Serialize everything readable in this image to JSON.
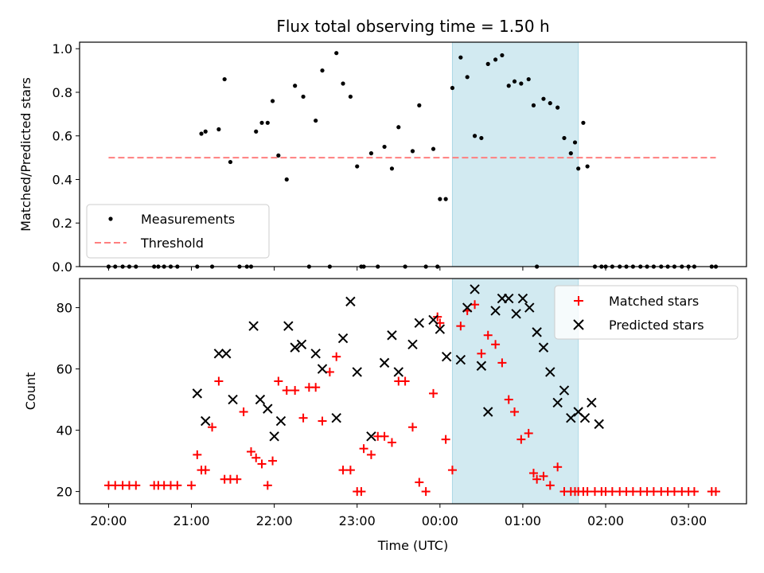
{
  "chart_data": [
    {
      "type": "scatter",
      "title": "Flux total observing time = 1.50 h",
      "xlabel": "",
      "ylabel": "Matched/Predicted stars",
      "ylim": [
        0,
        1.03
      ],
      "yticks": [
        "0.0",
        "0.2",
        "0.4",
        "0.6",
        "0.8",
        "1.0"
      ],
      "xticks": [
        "20:00",
        "21:00",
        "22:00",
        "23:00",
        "00:00",
        "01:00",
        "02:00",
        "03:00"
      ],
      "legend": {
        "placement": "lower-left",
        "entries": [
          "Measurements",
          "Threshold"
        ]
      },
      "threshold": {
        "name": "Threshold",
        "value": 0.5,
        "x_range": [
          0,
          7.33
        ],
        "color": "#ff7f7f",
        "style": "dashed"
      },
      "shaded_span": {
        "x_start": 4.15,
        "x_end": 5.67,
        "color": "#add8e6"
      },
      "series": [
        {
          "name": "Measurements",
          "color": "#000000",
          "marker": "dot",
          "x": [
            0.0,
            0.08,
            0.17,
            0.25,
            0.33,
            0.55,
            0.6,
            0.67,
            0.75,
            0.83,
            1.07,
            1.12,
            1.17,
            1.25,
            1.33,
            1.4,
            1.47,
            1.58,
            1.67,
            1.72,
            1.78,
            1.85,
            1.92,
            1.98,
            2.05,
            2.15,
            2.25,
            2.35,
            2.42,
            2.5,
            2.58,
            2.67,
            2.75,
            2.83,
            2.92,
            3.0,
            3.05,
            3.08,
            3.17,
            3.25,
            3.33,
            3.42,
            3.5,
            3.58,
            3.67,
            3.75,
            3.83,
            3.92,
            3.97,
            4.0,
            4.07,
            4.15,
            4.25,
            4.33,
            4.42,
            4.5,
            4.58,
            4.67,
            4.75,
            4.83,
            4.9,
            4.98,
            5.07,
            5.13,
            5.17,
            5.25,
            5.33,
            5.42,
            5.5,
            5.58,
            5.63,
            5.67,
            5.73,
            5.78,
            5.87,
            5.95,
            6.0,
            6.08,
            6.17,
            6.25,
            6.33,
            6.42,
            6.5,
            6.58,
            6.67,
            6.75,
            6.83,
            6.92,
            7.0,
            7.07,
            7.28,
            7.33
          ],
          "y": [
            0,
            0,
            0,
            0,
            0,
            0,
            0,
            0,
            0,
            0,
            0,
            0.61,
            0.62,
            0,
            0.63,
            0.86,
            0.48,
            0,
            0,
            0,
            0.62,
            0.66,
            0.66,
            0.76,
            0.51,
            0.4,
            0.83,
            0.78,
            0,
            0.67,
            0.9,
            0,
            0.98,
            0.84,
            0.78,
            0.46,
            0,
            0,
            0.52,
            0,
            0.55,
            0.45,
            0.64,
            0,
            0.53,
            0.74,
            0,
            0.54,
            0,
            0.31,
            0.31,
            0.82,
            0.96,
            0.87,
            0.6,
            0.59,
            0.93,
            0.95,
            0.97,
            0.83,
            0.85,
            0.84,
            0.86,
            0.74,
            0,
            0.77,
            0.75,
            0.73,
            0.59,
            0.52,
            0.57,
            0.45,
            0.66,
            0.46,
            0,
            0,
            0,
            0,
            0,
            0,
            0,
            0,
            0,
            0,
            0,
            0,
            0,
            0,
            0,
            0,
            0,
            0
          ]
        }
      ]
    },
    {
      "type": "scatter",
      "title": "",
      "xlabel": "Time (UTC)",
      "ylabel": "Count",
      "ylim": [
        16,
        89.5
      ],
      "yticks": [
        "20",
        "40",
        "60",
        "80"
      ],
      "xticks": [
        "20:00",
        "21:00",
        "22:00",
        "23:00",
        "00:00",
        "01:00",
        "02:00",
        "03:00"
      ],
      "legend": {
        "placement": "top-right",
        "entries": [
          "Matched stars",
          "Predicted stars"
        ]
      },
      "shaded_span": {
        "x_start": 4.15,
        "x_end": 5.67,
        "color": "#add8e6"
      },
      "series": [
        {
          "name": "Matched stars",
          "color": "#ff0000",
          "marker": "plus",
          "x": [
            0.0,
            0.08,
            0.17,
            0.25,
            0.33,
            0.55,
            0.6,
            0.67,
            0.75,
            0.83,
            1.0,
            1.07,
            1.12,
            1.17,
            1.25,
            1.33,
            1.4,
            1.47,
            1.55,
            1.63,
            1.72,
            1.78,
            1.85,
            1.92,
            1.98,
            2.05,
            2.15,
            2.25,
            2.35,
            2.42,
            2.5,
            2.58,
            2.67,
            2.75,
            2.83,
            2.92,
            3.0,
            3.05,
            3.08,
            3.17,
            3.25,
            3.33,
            3.42,
            3.5,
            3.58,
            3.67,
            3.75,
            3.83,
            3.92,
            3.97,
            4.0,
            4.07,
            4.15,
            4.25,
            4.33,
            4.42,
            4.5,
            4.58,
            4.67,
            4.75,
            4.83,
            4.9,
            4.98,
            5.07,
            5.13,
            5.17,
            5.25,
            5.33,
            5.42,
            5.5,
            5.58,
            5.63,
            5.67,
            5.73,
            5.78,
            5.87,
            5.95,
            6.0,
            6.08,
            6.17,
            6.25,
            6.33,
            6.42,
            6.5,
            6.58,
            6.67,
            6.75,
            6.83,
            6.92,
            7.0,
            7.07,
            7.28,
            7.33
          ],
          "y": [
            22,
            22,
            22,
            22,
            22,
            22,
            22,
            22,
            22,
            22,
            22,
            32,
            27,
            27,
            41,
            56,
            24,
            24,
            24,
            46,
            33,
            31,
            29,
            22,
            30,
            56,
            53,
            53,
            44,
            54,
            54,
            43,
            59,
            64,
            27,
            27,
            20,
            20,
            34,
            32,
            38,
            38,
            36,
            56,
            56,
            41,
            23,
            20,
            52,
            77,
            75,
            37,
            27,
            74,
            79,
            81,
            65,
            71,
            68,
            62,
            50,
            46,
            37,
            39,
            26,
            24,
            25,
            22,
            28,
            20,
            20,
            20,
            20,
            20,
            20,
            20,
            20,
            20,
            20,
            20,
            20,
            20,
            20,
            20,
            20,
            20,
            20,
            20,
            20,
            20,
            20,
            20,
            20
          ],
          "x2": [
            0.0,
            0.08,
            0.17,
            0.25,
            0.33,
            0.55,
            0.6,
            0.67,
            0.75,
            0.83,
            1.0,
            1.07,
            1.12,
            1.17,
            1.25,
            1.33,
            1.4,
            1.47,
            1.55,
            1.63,
            1.72,
            1.78,
            1.85,
            1.92,
            1.98,
            2.05,
            2.15,
            2.25,
            2.35,
            2.42,
            2.5,
            2.58,
            2.67,
            2.75,
            2.83,
            2.92,
            3.0,
            3.05,
            3.08,
            3.17,
            3.25,
            3.33,
            3.42,
            3.5,
            3.58,
            3.67,
            3.75,
            3.83,
            3.92,
            3.97,
            4.0,
            4.07,
            4.15,
            4.25,
            4.33,
            4.42,
            4.5,
            4.58,
            4.67,
            4.75,
            4.83,
            4.9,
            4.98,
            5.07,
            5.13,
            5.17,
            5.25,
            5.33,
            5.42,
            5.5,
            5.58,
            5.63,
            5.67,
            5.73,
            5.78,
            5.87,
            5.95,
            6.0,
            6.08,
            6.17,
            6.25,
            6.33,
            6.42,
            6.5,
            6.58,
            6.67,
            6.75,
            6.83,
            6.92,
            7.0,
            7.07,
            7.28,
            7.33
          ]
        },
        {
          "name": "Predicted stars",
          "color": "#000000",
          "marker": "x",
          "x": [
            1.07,
            1.17,
            1.33,
            1.42,
            1.5,
            1.75,
            1.83,
            1.92,
            2.0,
            2.08,
            2.17,
            2.25,
            2.33,
            2.5,
            2.58,
            2.75,
            2.83,
            2.92,
            3.0,
            3.17,
            3.33,
            3.42,
            3.5,
            3.67,
            3.75,
            3.92,
            4.0,
            4.08,
            4.25,
            4.33,
            4.42,
            4.5,
            4.58,
            4.67,
            4.75,
            4.83,
            4.92,
            5.0,
            5.08,
            5.17,
            5.25,
            5.33,
            5.42,
            5.5,
            5.58,
            5.67,
            5.75,
            5.83,
            5.92
          ],
          "y": [
            52,
            43,
            65,
            65,
            50,
            74,
            50,
            47,
            38,
            43,
            74,
            67,
            68,
            65,
            60,
            44,
            70,
            82,
            59,
            38,
            62,
            71,
            59,
            68,
            75,
            76,
            73,
            64,
            63,
            80,
            86,
            61,
            46,
            79,
            83,
            83,
            78,
            83,
            80,
            72,
            67,
            59,
            49,
            53,
            44,
            46,
            44,
            49,
            42
          ]
        }
      ]
    }
  ]
}
